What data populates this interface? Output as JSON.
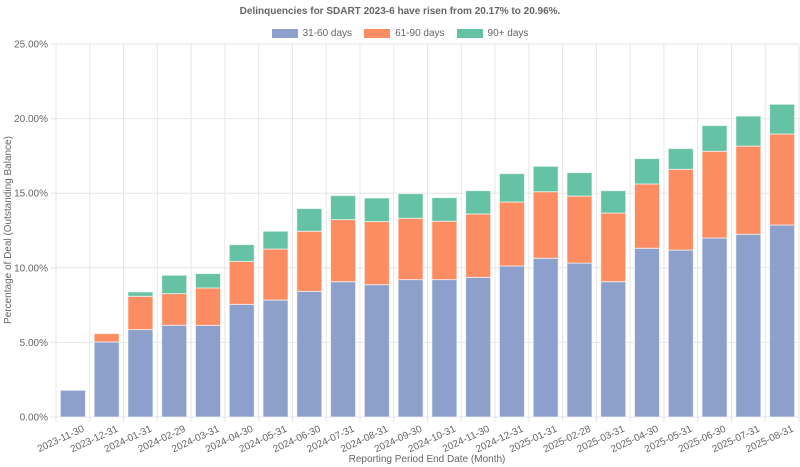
{
  "chart_data": {
    "type": "bar",
    "stacked": true,
    "title": "Delinquencies for SDART 2023-6 have risen from 20.17% to 20.96%.",
    "xlabel": "Reporting Period End Date (Month)",
    "ylabel": "Percentage of Deal (Outstanding Balance)",
    "ylim": [
      0,
      25
    ],
    "yticks": [
      0,
      5,
      10,
      15,
      20,
      25
    ],
    "ytick_labels": [
      "0.00%",
      "5.00%",
      "10.00%",
      "15.00%",
      "20.00%",
      "25.00%"
    ],
    "grid": true,
    "legend_position": "top-center",
    "categories": [
      "2023-11-30",
      "2023-12-31",
      "2024-01-31",
      "2024-02-29",
      "2024-03-31",
      "2024-04-30",
      "2024-05-31",
      "2024-06-30",
      "2024-07-31",
      "2024-08-31",
      "2024-09-30",
      "2024-10-31",
      "2024-11-30",
      "2024-12-31",
      "2025-01-31",
      "2025-02-28",
      "2025-03-31",
      "2025-04-30",
      "2025-05-31",
      "2025-06-30",
      "2025-07-31",
      "2025-08-31"
    ],
    "series": [
      {
        "name": "31-60 days",
        "color": "#8da0cb",
        "values": [
          1.79,
          5.03,
          5.86,
          6.15,
          6.14,
          7.55,
          7.84,
          8.42,
          9.07,
          8.87,
          9.21,
          9.21,
          9.36,
          10.12,
          10.64,
          10.32,
          9.07,
          11.31,
          11.19,
          12.0,
          12.25,
          12.87
        ]
      },
      {
        "name": "61-90 days",
        "color": "#fc8d62",
        "values": [
          0.0,
          0.56,
          2.23,
          2.12,
          2.51,
          2.88,
          3.42,
          4.03,
          4.16,
          4.23,
          4.11,
          3.91,
          4.25,
          4.29,
          4.46,
          4.49,
          4.6,
          4.31,
          5.41,
          5.81,
          5.91,
          6.1
        ]
      },
      {
        "name": "90+ days",
        "color": "#66c2a5",
        "values": [
          0.0,
          0.0,
          0.29,
          1.23,
          0.96,
          1.12,
          1.19,
          1.52,
          1.61,
          1.58,
          1.65,
          1.58,
          1.56,
          1.9,
          1.7,
          1.57,
          1.5,
          1.7,
          1.39,
          1.72,
          2.01,
          1.99
        ]
      }
    ]
  }
}
